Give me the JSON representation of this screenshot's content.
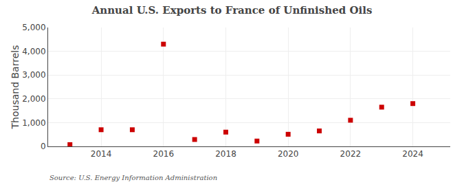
{
  "chart_data": {
    "type": "scatter",
    "title": "Annual U.S. Exports to France of Unfinished Oils",
    "ylabel": "Thousand Barrels",
    "annotations": [
      "Source: U.S. Energy Information Administration"
    ],
    "x": [
      2013,
      2014,
      2015,
      2016,
      2017,
      2018,
      2019,
      2020,
      2021,
      2022,
      2023,
      2024
    ],
    "values": [
      75,
      700,
      700,
      4300,
      290,
      600,
      225,
      510,
      650,
      1100,
      1650,
      1800
    ],
    "color": "#cc0000",
    "marker": "square",
    "xlim": [
      2012.3,
      2025.2
    ],
    "xticks": [
      2014,
      2016,
      2018,
      2020,
      2022,
      2024
    ],
    "ylim": [
      0,
      5000
    ],
    "yticks": [
      0,
      {
        "value": 1000,
        "label": "1,000"
      },
      {
        "value": 2000,
        "label": "2,000"
      },
      {
        "value": 3000,
        "label": "3,000"
      },
      {
        "value": 4000,
        "label": "4,000"
      },
      {
        "value": 5000,
        "label": "5,000"
      }
    ],
    "grid": true
  }
}
